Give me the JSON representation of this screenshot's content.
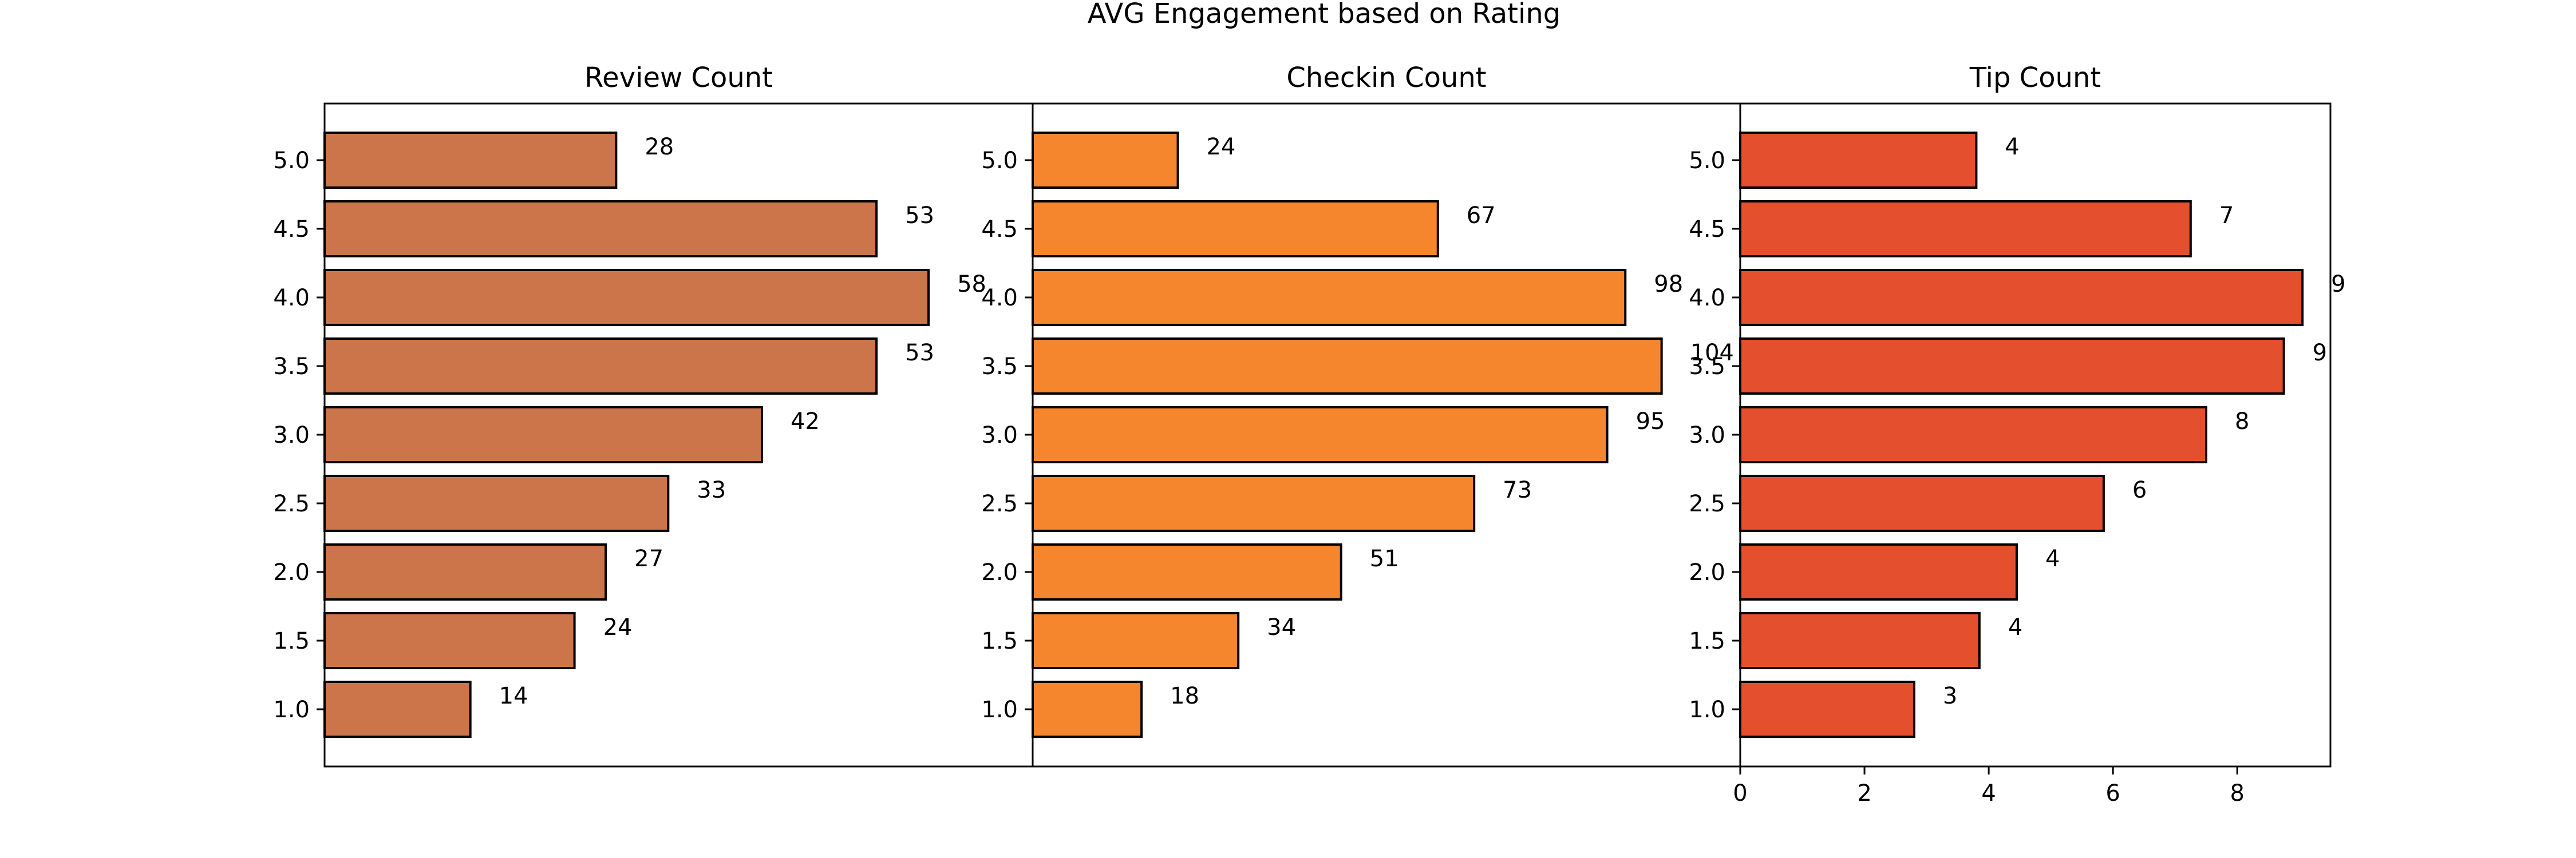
{
  "figure": {
    "title": "AVG Engagement based on Rating"
  },
  "chart_data": [
    {
      "type": "bar",
      "orientation": "horizontal",
      "title": "Review Count",
      "categories": [
        "1.0",
        "1.5",
        "2.0",
        "2.5",
        "3.0",
        "3.5",
        "4.0",
        "4.5",
        "5.0"
      ],
      "values": [
        14,
        24,
        27,
        33,
        42,
        53,
        58,
        53,
        28
      ],
      "value_labels": [
        "14",
        "24",
        "27",
        "33",
        "42",
        "53",
        "58",
        "53",
        "28"
      ],
      "xlim": [
        0,
        68
      ],
      "show_x_ticks": false,
      "color": "#cd754a",
      "edge_color": "#000000",
      "grid": false
    },
    {
      "type": "bar",
      "orientation": "horizontal",
      "title": "Checkin Count",
      "categories": [
        "1.0",
        "1.5",
        "2.0",
        "2.5",
        "3.0",
        "3.5",
        "4.0",
        "4.5",
        "5.0"
      ],
      "values": [
        18,
        34,
        51,
        73,
        95,
        104,
        98,
        67,
        24
      ],
      "value_labels": [
        "18",
        "34",
        "51",
        "73",
        "95",
        "104",
        "98",
        "67",
        "24"
      ],
      "xlim": [
        0,
        117
      ],
      "show_x_ticks": false,
      "color": "#f5862e",
      "edge_color": "#000000",
      "grid": false
    },
    {
      "type": "bar",
      "orientation": "horizontal",
      "title": "Tip Count",
      "categories": [
        "1.0",
        "1.5",
        "2.0",
        "2.5",
        "3.0",
        "3.5",
        "4.0",
        "4.5",
        "5.0"
      ],
      "values": [
        2.8,
        3.85,
        4.45,
        5.85,
        7.5,
        8.75,
        9.05,
        7.25,
        3.8
      ],
      "value_labels": [
        "3",
        "4",
        "4",
        "6",
        "8",
        "9",
        "9",
        "7",
        "4"
      ],
      "xlim": [
        0,
        9.5
      ],
      "x_ticks": [
        0,
        2,
        4,
        6,
        8
      ],
      "show_x_ticks": true,
      "color": "#e4502d",
      "edge_color": "#000000",
      "grid": false
    }
  ]
}
